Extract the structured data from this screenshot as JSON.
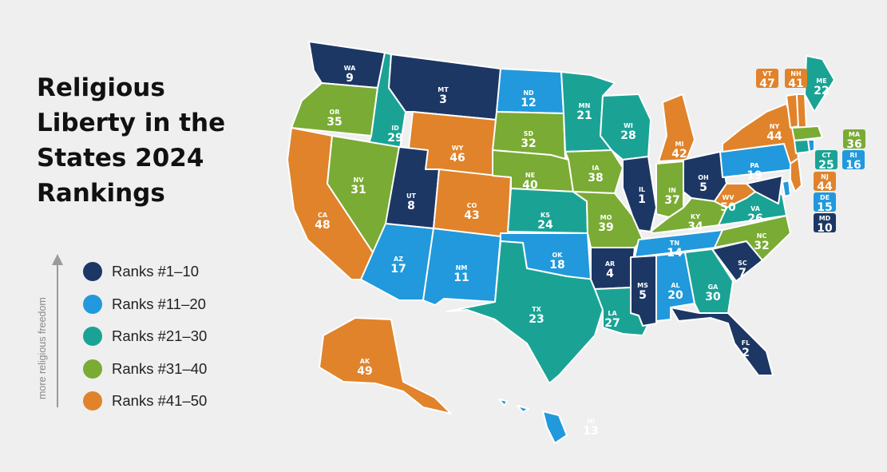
{
  "title_lines": [
    "Religious",
    "Liberty in the",
    "States 2024",
    "Rankings"
  ],
  "axis_label": "more religious freedom",
  "colors": {
    "t1": "#1c3764",
    "t2": "#2199dc",
    "t3": "#1aa395",
    "t4": "#7aab34",
    "t5": "#e0832b"
  },
  "legend": [
    {
      "label": "Ranks #1–10",
      "tier": "t1"
    },
    {
      "label": "Ranks #11–20",
      "tier": "t2"
    },
    {
      "label": "Ranks #21–30",
      "tier": "t3"
    },
    {
      "label": "Ranks #31–40",
      "tier": "t4"
    },
    {
      "label": "Ranks #41–50",
      "tier": "t5"
    }
  ],
  "states": [
    {
      "abbr": "WA",
      "rank": "9"
    },
    {
      "abbr": "OR",
      "rank": "35"
    },
    {
      "abbr": "CA",
      "rank": "48"
    },
    {
      "abbr": "ID",
      "rank": "29"
    },
    {
      "abbr": "NV",
      "rank": "31"
    },
    {
      "abbr": "MT",
      "rank": "3"
    },
    {
      "abbr": "WY",
      "rank": "46"
    },
    {
      "abbr": "UT",
      "rank": "8"
    },
    {
      "abbr": "CO",
      "rank": "43"
    },
    {
      "abbr": "AZ",
      "rank": "17"
    },
    {
      "abbr": "NM",
      "rank": "11"
    },
    {
      "abbr": "ND",
      "rank": "12"
    },
    {
      "abbr": "SD",
      "rank": "32"
    },
    {
      "abbr": "NE",
      "rank": "40"
    },
    {
      "abbr": "KS",
      "rank": "24"
    },
    {
      "abbr": "OK",
      "rank": "18"
    },
    {
      "abbr": "TX",
      "rank": "23"
    },
    {
      "abbr": "MN",
      "rank": "21"
    },
    {
      "abbr": "IA",
      "rank": "38"
    },
    {
      "abbr": "MO",
      "rank": "39"
    },
    {
      "abbr": "AR",
      "rank": "4"
    },
    {
      "abbr": "LA",
      "rank": "27"
    },
    {
      "abbr": "WI",
      "rank": "28"
    },
    {
      "abbr": "IL",
      "rank": "1"
    },
    {
      "abbr": "MI",
      "rank": "42"
    },
    {
      "abbr": "IN",
      "rank": "37"
    },
    {
      "abbr": "OH",
      "rank": "5"
    },
    {
      "abbr": "KY",
      "rank": "34"
    },
    {
      "abbr": "TN",
      "rank": "14"
    },
    {
      "abbr": "MS",
      "rank": "5"
    },
    {
      "abbr": "AL",
      "rank": "20"
    },
    {
      "abbr": "GA",
      "rank": "30"
    },
    {
      "abbr": "FL",
      "rank": "2"
    },
    {
      "abbr": "SC",
      "rank": "7"
    },
    {
      "abbr": "NC",
      "rank": "32"
    },
    {
      "abbr": "VA",
      "rank": "26"
    },
    {
      "abbr": "WV",
      "rank": "50"
    },
    {
      "abbr": "PA",
      "rank": "19"
    },
    {
      "abbr": "NY",
      "rank": "44"
    },
    {
      "abbr": "ME",
      "rank": "22"
    },
    {
      "abbr": "AK",
      "rank": "49"
    },
    {
      "abbr": "HI",
      "rank": "13"
    },
    {
      "abbr": "VT",
      "rank": "47"
    },
    {
      "abbr": "NH",
      "rank": "41"
    },
    {
      "abbr": "MA",
      "rank": "36"
    },
    {
      "abbr": "CT",
      "rank": "25"
    },
    {
      "abbr": "RI",
      "rank": "16"
    },
    {
      "abbr": "NJ",
      "rank": "44"
    },
    {
      "abbr": "DE",
      "rank": "15"
    },
    {
      "abbr": "MD",
      "rank": "10"
    }
  ]
}
